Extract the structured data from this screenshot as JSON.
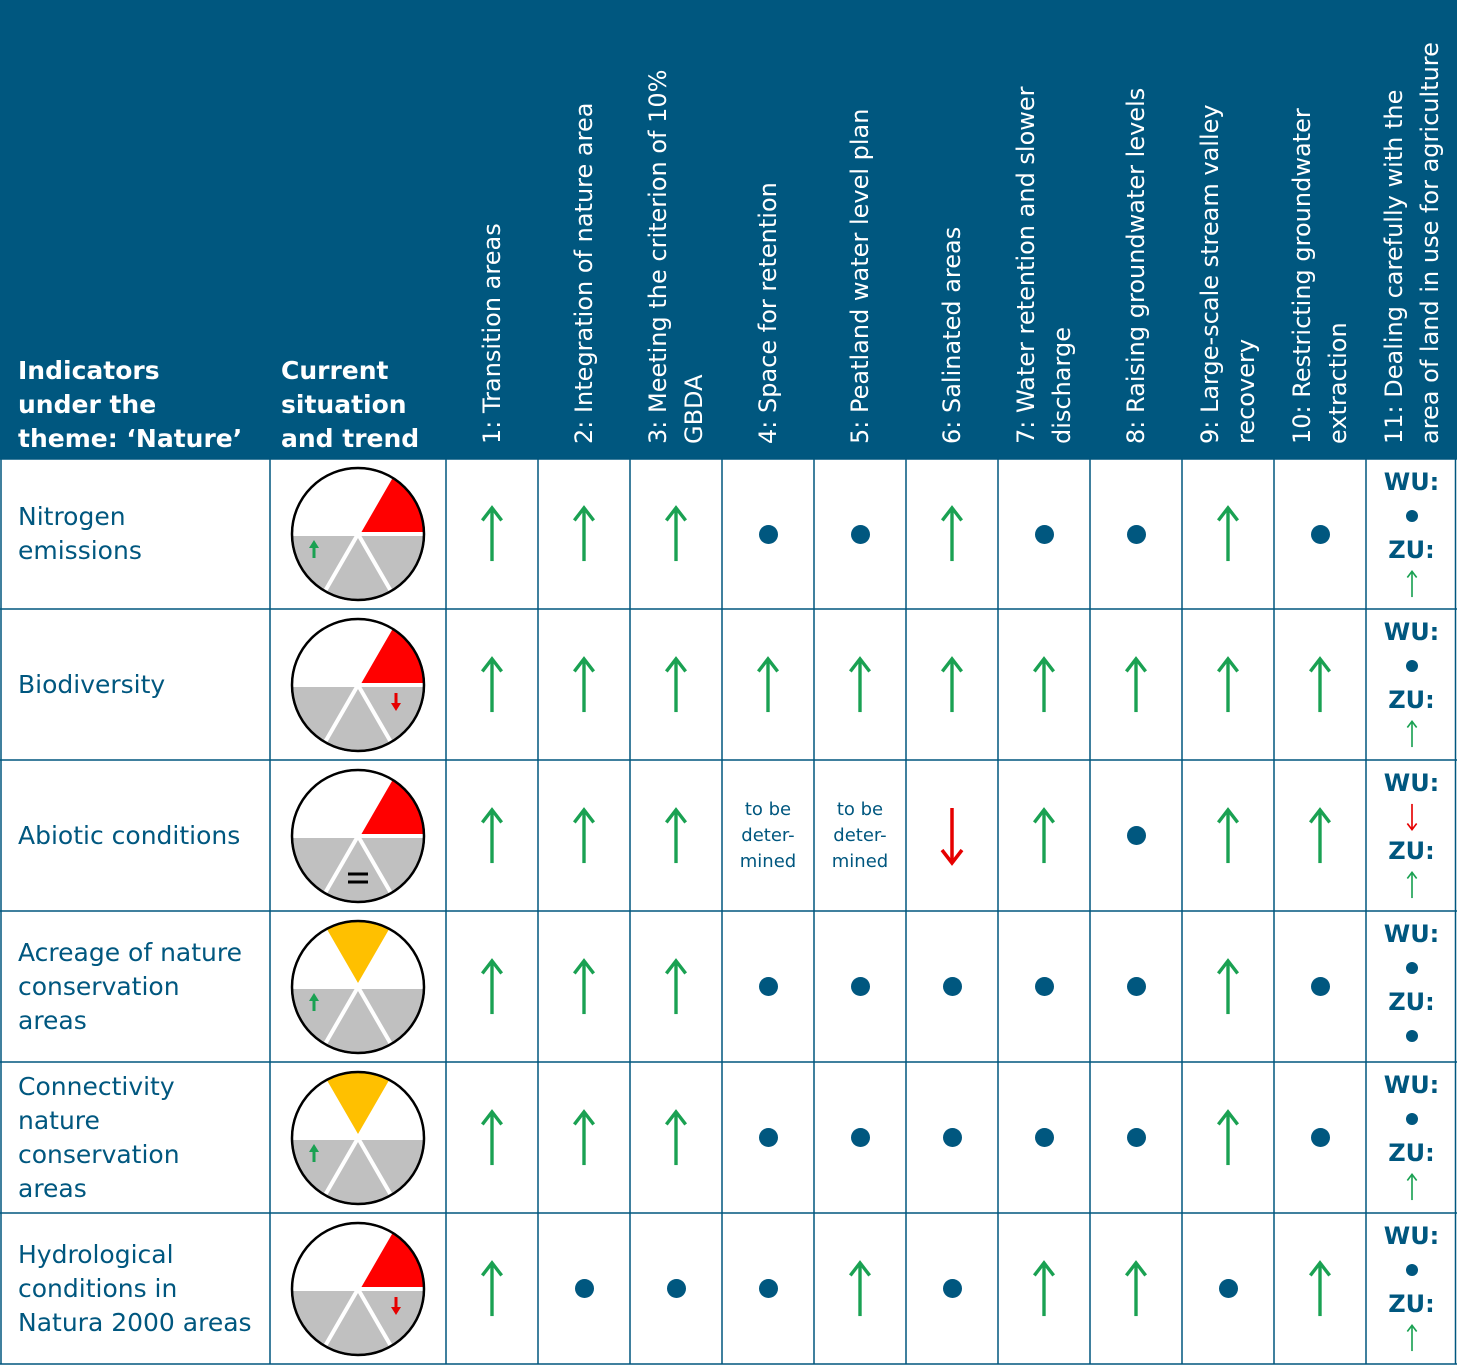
{
  "header": {
    "indicators_label": [
      "Indicators",
      "under the",
      "theme: ‘Nature’"
    ],
    "current_label": [
      "Current",
      "situation",
      "and trend"
    ],
    "columns": [
      [
        "1: Transition areas"
      ],
      [
        "2: Integration of nature area"
      ],
      [
        "3: Meeting the criterion of 10%",
        "GBDA"
      ],
      [
        "4: Space for retention"
      ],
      [
        "5: Peatland water level plan"
      ],
      [
        "6: Salinated areas"
      ],
      [
        "7: Water retention and slower",
        "discharge"
      ],
      [
        "8: Raising groundwater levels"
      ],
      [
        "9: Large-scale stream valley",
        "recovery"
      ],
      [
        "10: Restricting groundwater",
        "extraction"
      ],
      [
        "11: Dealing carefully with the",
        "area of land in use for agriculture"
      ]
    ]
  },
  "colors": {
    "header_bg": "#00577f",
    "text": "#00577f",
    "up_arrow": "#1aa152",
    "down_arrow": "#e60000",
    "dot": "#00577f",
    "pie_red": "#ff0000",
    "pie_orange": "#ffc000",
    "pie_grey": "#c0c0c0"
  },
  "tbd_text": [
    "to be",
    "deter-",
    "mined"
  ],
  "wu_label": "WU:",
  "zu_label": "ZU:",
  "rows": [
    {
      "label": [
        "Nitrogen",
        "emissions"
      ],
      "pie": {
        "highlight": "red-right",
        "trend": "up-left"
      },
      "cells": [
        "up",
        "up",
        "up",
        "dot",
        "dot",
        "up",
        "dot",
        "dot",
        "up",
        "dot"
      ],
      "wu": "dot",
      "zu": "up"
    },
    {
      "label": [
        "Biodiversity"
      ],
      "pie": {
        "highlight": "red-right",
        "trend": "down-right"
      },
      "cells": [
        "up",
        "up",
        "up",
        "up",
        "up",
        "up",
        "up",
        "up",
        "up",
        "up"
      ],
      "wu": "dot",
      "zu": "up"
    },
    {
      "label": [
        "Abiotic conditions"
      ],
      "pie": {
        "highlight": "red-right",
        "trend": "equal-bottom"
      },
      "cells": [
        "up",
        "up",
        "up",
        "tbd",
        "tbd",
        "down",
        "up",
        "dot",
        "up",
        "up"
      ],
      "wu": "down",
      "zu": "up"
    },
    {
      "label": [
        "Acreage of nature",
        "conservation",
        "areas"
      ],
      "pie": {
        "highlight": "orange-top",
        "trend": "up-left"
      },
      "cells": [
        "up",
        "up",
        "up",
        "dot",
        "dot",
        "dot",
        "dot",
        "dot",
        "up",
        "dot"
      ],
      "wu": "dot",
      "zu": "dot"
    },
    {
      "label": [
        "Connectivity",
        "nature",
        "conservation",
        "areas"
      ],
      "pie": {
        "highlight": "orange-top",
        "trend": "up-left"
      },
      "cells": [
        "up",
        "up",
        "up",
        "dot",
        "dot",
        "dot",
        "dot",
        "dot",
        "up",
        "dot"
      ],
      "wu": "dot",
      "zu": "up"
    },
    {
      "label": [
        "Hydrological",
        "conditions in",
        "Natura 2000 areas"
      ],
      "pie": {
        "highlight": "red-right",
        "trend": "down-right"
      },
      "cells": [
        "up",
        "dot",
        "dot",
        "dot",
        "up",
        "dot",
        "up",
        "up",
        "dot",
        "up"
      ],
      "wu": "dot",
      "zu": "up"
    }
  ]
}
